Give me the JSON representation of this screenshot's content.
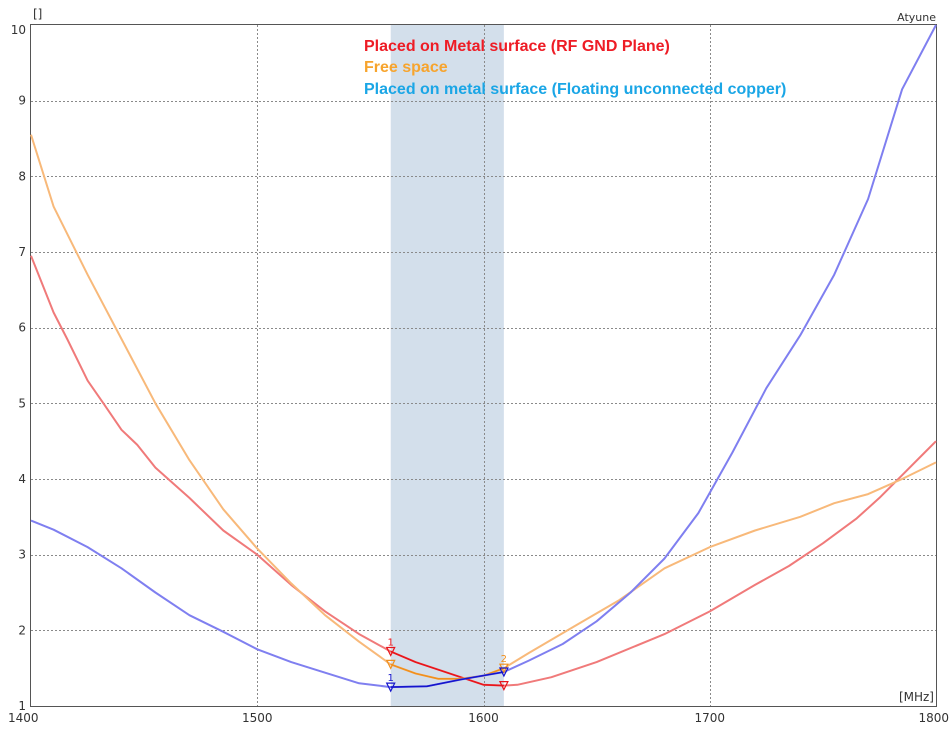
{
  "app": {
    "name": "Atyune"
  },
  "chart_data": {
    "type": "line",
    "x_unit_label": "[MHz]",
    "y_unit_label": "[]",
    "xlim": [
      1400,
      1800
    ],
    "ylim": [
      1,
      10
    ],
    "x_ticks": [
      1400,
      1500,
      1600,
      1700,
      1800
    ],
    "y_ticks": [
      1,
      2,
      3,
      4,
      5,
      6,
      7,
      8,
      9,
      10
    ],
    "grid": true,
    "band": {
      "x_start": 1559,
      "x_end": 1609,
      "color": "#d3dfeb"
    },
    "series": [
      {
        "name": "Placed on Metal surface (RF GND Plane)",
        "color": "#f07a7a",
        "highlight_color": "#e8141b",
        "legend_color": "#ee1c25",
        "points": [
          [
            1400,
            6.95
          ],
          [
            1410,
            6.2
          ],
          [
            1416,
            5.85
          ],
          [
            1425,
            5.3
          ],
          [
            1432,
            5.0
          ],
          [
            1440,
            4.65
          ],
          [
            1447,
            4.45
          ],
          [
            1455,
            4.15
          ],
          [
            1470,
            3.75
          ],
          [
            1485,
            3.32
          ],
          [
            1500,
            3.0
          ],
          [
            1515,
            2.6
          ],
          [
            1530,
            2.25
          ],
          [
            1545,
            1.95
          ],
          [
            1559,
            1.72
          ],
          [
            1570,
            1.58
          ],
          [
            1590,
            1.38
          ],
          [
            1600,
            1.28
          ],
          [
            1609,
            1.27
          ],
          [
            1615,
            1.28
          ],
          [
            1630,
            1.38
          ],
          [
            1650,
            1.58
          ],
          [
            1680,
            1.95
          ],
          [
            1700,
            2.25
          ],
          [
            1720,
            2.6
          ],
          [
            1735,
            2.85
          ],
          [
            1750,
            3.15
          ],
          [
            1765,
            3.48
          ],
          [
            1775,
            3.75
          ],
          [
            1785,
            4.05
          ],
          [
            1795,
            4.35
          ],
          [
            1800,
            4.5
          ]
        ]
      },
      {
        "name": "Free space",
        "color": "#f8b97a",
        "highlight_color": "#f0901e",
        "legend_color": "#f7a42d",
        "points": [
          [
            1400,
            8.55
          ],
          [
            1410,
            7.6
          ],
          [
            1425,
            6.7
          ],
          [
            1440,
            5.85
          ],
          [
            1455,
            5.0
          ],
          [
            1470,
            4.25
          ],
          [
            1485,
            3.6
          ],
          [
            1500,
            3.08
          ],
          [
            1515,
            2.62
          ],
          [
            1530,
            2.2
          ],
          [
            1545,
            1.85
          ],
          [
            1559,
            1.55
          ],
          [
            1570,
            1.43
          ],
          [
            1580,
            1.36
          ],
          [
            1590,
            1.36
          ],
          [
            1600,
            1.4
          ],
          [
            1609,
            1.5
          ],
          [
            1620,
            1.7
          ],
          [
            1640,
            2.05
          ],
          [
            1660,
            2.4
          ],
          [
            1680,
            2.82
          ],
          [
            1700,
            3.1
          ],
          [
            1720,
            3.32
          ],
          [
            1740,
            3.5
          ],
          [
            1755,
            3.68
          ],
          [
            1770,
            3.8
          ],
          [
            1785,
            4.0
          ],
          [
            1800,
            4.22
          ]
        ]
      },
      {
        "name": "Placed on metal surface (Floating unconnected copper)",
        "color": "#7f7ff0",
        "highlight_color": "#1515cc",
        "legend_color": "#1aa6e6",
        "points": [
          [
            1400,
            3.45
          ],
          [
            1410,
            3.33
          ],
          [
            1425,
            3.1
          ],
          [
            1440,
            2.82
          ],
          [
            1455,
            2.5
          ],
          [
            1470,
            2.2
          ],
          [
            1485,
            1.98
          ],
          [
            1500,
            1.75
          ],
          [
            1515,
            1.58
          ],
          [
            1530,
            1.44
          ],
          [
            1545,
            1.3
          ],
          [
            1559,
            1.25
          ],
          [
            1575,
            1.26
          ],
          [
            1590,
            1.35
          ],
          [
            1609,
            1.45
          ],
          [
            1620,
            1.6
          ],
          [
            1635,
            1.82
          ],
          [
            1650,
            2.12
          ],
          [
            1665,
            2.5
          ],
          [
            1680,
            2.95
          ],
          [
            1695,
            3.55
          ],
          [
            1710,
            4.35
          ],
          [
            1725,
            5.2
          ],
          [
            1740,
            5.9
          ],
          [
            1755,
            6.7
          ],
          [
            1770,
            7.7
          ],
          [
            1785,
            9.15
          ],
          [
            1800,
            10.0
          ]
        ]
      }
    ],
    "markers": [
      {
        "series": 0,
        "x": 1559,
        "y": 1.72,
        "label": "1"
      },
      {
        "series": 0,
        "x": 1609,
        "y": 1.27,
        "label": ""
      },
      {
        "series": 1,
        "x": 1559,
        "y": 1.55,
        "label": ""
      },
      {
        "series": 1,
        "x": 1609,
        "y": 1.5,
        "label": "2"
      },
      {
        "series": 2,
        "x": 1559,
        "y": 1.25,
        "label": "1"
      },
      {
        "series": 2,
        "x": 1609,
        "y": 1.45,
        "label": ""
      }
    ]
  }
}
